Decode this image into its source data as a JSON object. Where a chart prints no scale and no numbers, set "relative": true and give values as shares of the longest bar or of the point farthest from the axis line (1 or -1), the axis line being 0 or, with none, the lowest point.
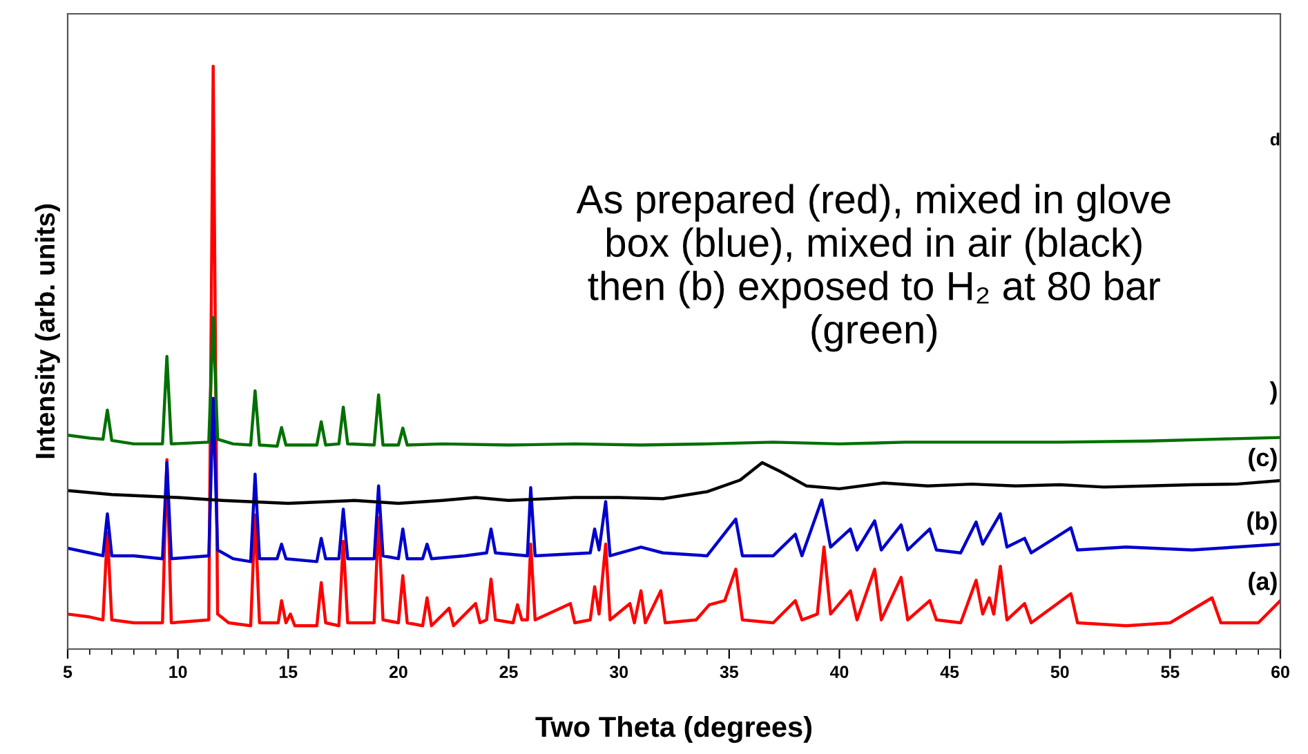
{
  "chart_data": {
    "type": "line",
    "relative": true,
    "xlabel": "Two Theta (degrees)",
    "ylabel": "Intensity (arb. units)",
    "xlim": [
      5,
      60
    ],
    "xticks": [
      5,
      10,
      15,
      20,
      25,
      30,
      35,
      40,
      45,
      50,
      55,
      60
    ],
    "tick_labels": "x",
    "grid": false,
    "marker": "none",
    "line_style": "solid",
    "series": [
      {
        "color": "#ff0000",
        "x": [
          5.0,
          6.0,
          6.6,
          6.8,
          7.0,
          8.0,
          9.3,
          9.5,
          9.7,
          11.4,
          11.6,
          11.8,
          12.3,
          13.3,
          13.5,
          13.7,
          14.55,
          14.7,
          14.9,
          15.1,
          15.3,
          16.3,
          16.5,
          16.7,
          17.3,
          17.5,
          17.7,
          18.9,
          19.1,
          19.3,
          20.0,
          20.2,
          20.4,
          21.1,
          21.3,
          21.5,
          22.3,
          22.5,
          23.5,
          23.7,
          24.0,
          24.2,
          24.4,
          25.2,
          25.4,
          25.6,
          25.85,
          26.0,
          26.2,
          27.8,
          28.0,
          28.7,
          28.9,
          29.1,
          29.4,
          29.6,
          30.5,
          30.7,
          31.0,
          31.2,
          31.9,
          32.1,
          33.5,
          34.1,
          34.8,
          35.3,
          35.6,
          37.0,
          38.0,
          38.3,
          39.0,
          39.3,
          39.6,
          40.5,
          40.8,
          41.6,
          41.9,
          42.8,
          43.1,
          44.1,
          44.4,
          45.5,
          46.2,
          46.5,
          46.8,
          47.0,
          47.3,
          47.6,
          48.4,
          48.7,
          50.5,
          50.8,
          53.0,
          55.0,
          56.9,
          57.3,
          59.0,
          60.0
        ],
        "values": [
          0.06,
          0.055,
          0.05,
          0.2,
          0.05,
          0.045,
          0.045,
          0.325,
          0.045,
          0.05,
          1.0,
          0.06,
          0.045,
          0.04,
          0.23,
          0.045,
          0.045,
          0.083,
          0.045,
          0.06,
          0.04,
          0.04,
          0.114,
          0.045,
          0.04,
          0.185,
          0.045,
          0.045,
          0.225,
          0.05,
          0.045,
          0.126,
          0.045,
          0.04,
          0.088,
          0.04,
          0.07,
          0.04,
          0.078,
          0.045,
          0.05,
          0.12,
          0.05,
          0.045,
          0.076,
          0.05,
          0.05,
          0.18,
          0.05,
          0.078,
          0.045,
          0.05,
          0.107,
          0.06,
          0.18,
          0.05,
          0.078,
          0.045,
          0.1,
          0.045,
          0.1,
          0.045,
          0.05,
          0.076,
          0.083,
          0.137,
          0.05,
          0.045,
          0.083,
          0.05,
          0.06,
          0.175,
          0.06,
          0.1,
          0.05,
          0.137,
          0.05,
          0.123,
          0.05,
          0.083,
          0.05,
          0.045,
          0.118,
          0.06,
          0.088,
          0.06,
          0.142,
          0.05,
          0.078,
          0.045,
          0.095,
          0.045,
          0.04,
          0.045,
          0.088,
          0.045,
          0.045,
          0.083
        ]
      },
      {
        "color": "#0000cc",
        "x": [
          5.0,
          6.0,
          6.6,
          6.8,
          7.0,
          8.0,
          9.3,
          9.5,
          9.7,
          11.4,
          11.6,
          11.8,
          12.5,
          13.3,
          13.5,
          13.7,
          14.5,
          14.7,
          14.9,
          16.3,
          16.5,
          16.7,
          17.3,
          17.5,
          17.7,
          18.9,
          19.1,
          19.3,
          20.0,
          20.2,
          20.4,
          21.1,
          21.3,
          21.5,
          23.0,
          24.0,
          24.2,
          24.4,
          25.85,
          26.0,
          26.2,
          28.7,
          28.9,
          29.1,
          29.4,
          29.6,
          31.0,
          32.0,
          34.0,
          35.3,
          35.6,
          37.0,
          38.0,
          38.3,
          39.2,
          39.6,
          40.5,
          40.8,
          41.6,
          41.9,
          42.8,
          43.1,
          44.1,
          44.4,
          45.5,
          46.2,
          46.5,
          47.3,
          47.6,
          48.4,
          48.7,
          50.5,
          50.8,
          53.0,
          56.0,
          58.0,
          60.0
        ],
        "values": [
          0.173,
          0.165,
          0.16,
          0.232,
          0.16,
          0.16,
          0.155,
          0.32,
          0.155,
          0.16,
          0.43,
          0.17,
          0.155,
          0.15,
          0.3,
          0.155,
          0.155,
          0.18,
          0.155,
          0.15,
          0.19,
          0.155,
          0.155,
          0.24,
          0.155,
          0.155,
          0.28,
          0.16,
          0.155,
          0.206,
          0.155,
          0.155,
          0.18,
          0.155,
          0.16,
          0.165,
          0.206,
          0.165,
          0.16,
          0.277,
          0.16,
          0.165,
          0.206,
          0.17,
          0.253,
          0.16,
          0.175,
          0.165,
          0.16,
          0.223,
          0.16,
          0.16,
          0.197,
          0.16,
          0.256,
          0.175,
          0.206,
          0.17,
          0.22,
          0.17,
          0.213,
          0.17,
          0.206,
          0.17,
          0.165,
          0.218,
          0.18,
          0.232,
          0.175,
          0.19,
          0.165,
          0.208,
          0.17,
          0.175,
          0.17,
          0.175,
          0.18
        ]
      },
      {
        "color": "#000000",
        "x": [
          5,
          7,
          10,
          12,
          15,
          18,
          20,
          22,
          23.5,
          25,
          28,
          30,
          32,
          34,
          35.5,
          36.5,
          37.3,
          38.5,
          40,
          42,
          44,
          46,
          48,
          50,
          52,
          54,
          56,
          58,
          60
        ],
        "values": [
          0.272,
          0.265,
          0.26,
          0.255,
          0.25,
          0.255,
          0.25,
          0.255,
          0.26,
          0.255,
          0.26,
          0.26,
          0.258,
          0.27,
          0.29,
          0.32,
          0.305,
          0.28,
          0.275,
          0.285,
          0.28,
          0.283,
          0.28,
          0.282,
          0.278,
          0.28,
          0.282,
          0.283,
          0.289
        ]
      },
      {
        "color": "#007000",
        "x": [
          5,
          6,
          6.6,
          6.8,
          7.0,
          8,
          9.3,
          9.5,
          9.7,
          11.4,
          11.6,
          11.8,
          12.5,
          13.3,
          13.5,
          13.7,
          14.5,
          14.7,
          14.9,
          16.3,
          16.5,
          16.7,
          17.3,
          17.5,
          17.7,
          18.9,
          19.1,
          19.3,
          20.0,
          20.2,
          20.4,
          22,
          25,
          28,
          31,
          34,
          37,
          40,
          43,
          46,
          50,
          54,
          57,
          60
        ],
        "values": [
          0.367,
          0.362,
          0.36,
          0.41,
          0.358,
          0.352,
          0.352,
          0.502,
          0.352,
          0.355,
          0.569,
          0.36,
          0.352,
          0.35,
          0.443,
          0.35,
          0.348,
          0.38,
          0.35,
          0.35,
          0.39,
          0.35,
          0.352,
          0.415,
          0.352,
          0.35,
          0.436,
          0.35,
          0.35,
          0.379,
          0.35,
          0.352,
          0.35,
          0.352,
          0.35,
          0.352,
          0.355,
          0.352,
          0.355,
          0.355,
          0.355,
          0.357,
          0.36,
          0.363
        ]
      }
    ],
    "annotations": [
      "As prepared (red), mixed in glove\nbox (blue), mixed in air (black)\nthen (b) exposed to H₂ at 80 bar\n(green)",
      "d",
      "(a)",
      "(b)",
      "(c)",
      ")"
    ]
  }
}
